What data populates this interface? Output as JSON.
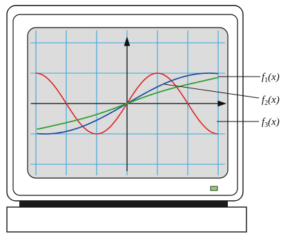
{
  "labels": {
    "f1": {
      "name": "f",
      "sub": "1",
      "arg": "(x)"
    },
    "f2": {
      "name": "f",
      "sub": "2",
      "arg": "(x)"
    },
    "f3": {
      "name": "f",
      "sub": "3",
      "arg": "(x)"
    }
  },
  "colors": {
    "screen_bg": "#dcdcdc",
    "grid": "#35a7dc",
    "axis": "#111111",
    "f1": "#2ca02c",
    "f2": "#1f4fa0",
    "f3": "#e02020",
    "power_led": "#8fd36a",
    "monitor_bezel": "#ffffff",
    "base": "#1a1a1a"
  }
}
